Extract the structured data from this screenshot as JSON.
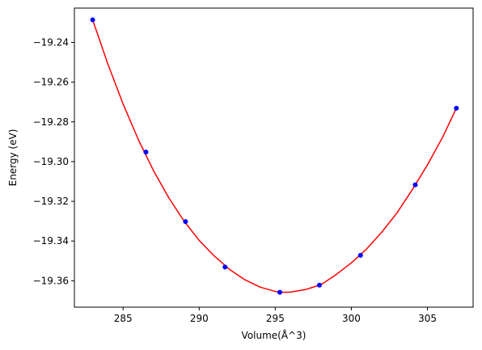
{
  "chart_data": {
    "type": "scatter",
    "title": "",
    "xlabel": "Volume(Å^3)",
    "ylabel": "Energy (eV)",
    "xlim": [
      281.8,
      308.0
    ],
    "ylim": [
      -19.3733,
      -19.2227
    ],
    "grid": false,
    "legend": "none",
    "x_ticks": [
      285,
      290,
      295,
      300,
      305
    ],
    "x_tick_labels": [
      "285",
      "290",
      "295",
      "300",
      "305"
    ],
    "y_ticks": [
      -19.24,
      -19.26,
      -19.28,
      -19.3,
      -19.32,
      -19.34,
      -19.36
    ],
    "y_tick_labels": [
      "−19.24",
      "−19.26",
      "−19.28",
      "−19.30",
      "−19.32",
      "−19.34",
      "−19.36"
    ],
    "series": [
      {
        "kind": "scatter",
        "color": "#0000ff",
        "points": [
          {
            "x": 283.0,
            "y": -19.2286
          },
          {
            "x": 286.5,
            "y": -19.2952
          },
          {
            "x": 289.1,
            "y": -19.3302
          },
          {
            "x": 291.7,
            "y": -19.3531
          },
          {
            "x": 295.3,
            "y": -19.3658
          },
          {
            "x": 297.9,
            "y": -19.3622
          },
          {
            "x": 300.6,
            "y": -19.3472
          },
          {
            "x": 304.2,
            "y": -19.3117
          },
          {
            "x": 306.9,
            "y": -19.2731
          }
        ]
      },
      {
        "kind": "line",
        "color": "#ff0000",
        "points": [
          {
            "x": 283.0,
            "y": -19.2286
          },
          {
            "x": 284.0,
            "y": -19.2509
          },
          {
            "x": 285.0,
            "y": -19.271
          },
          {
            "x": 286.0,
            "y": -19.2889
          },
          {
            "x": 287.0,
            "y": -19.3046
          },
          {
            "x": 288.0,
            "y": -19.3182
          },
          {
            "x": 289.0,
            "y": -19.3299
          },
          {
            "x": 290.0,
            "y": -19.3397
          },
          {
            "x": 291.0,
            "y": -19.3476
          },
          {
            "x": 292.0,
            "y": -19.3543
          },
          {
            "x": 293.0,
            "y": -19.3595
          },
          {
            "x": 294.0,
            "y": -19.3632
          },
          {
            "x": 295.0,
            "y": -19.3654
          },
          {
            "x": 295.6,
            "y": -19.3658
          },
          {
            "x": 296.0,
            "y": -19.3657
          },
          {
            "x": 297.0,
            "y": -19.3644
          },
          {
            "x": 298.0,
            "y": -19.362
          },
          {
            "x": 299.0,
            "y": -19.3569
          },
          {
            "x": 300.0,
            "y": -19.351
          },
          {
            "x": 301.0,
            "y": -19.344
          },
          {
            "x": 302.0,
            "y": -19.3355
          },
          {
            "x": 303.0,
            "y": -19.3258
          },
          {
            "x": 304.0,
            "y": -19.3142
          },
          {
            "x": 305.0,
            "y": -19.3016
          },
          {
            "x": 306.0,
            "y": -19.2877
          },
          {
            "x": 306.9,
            "y": -19.2731
          }
        ]
      }
    ]
  }
}
